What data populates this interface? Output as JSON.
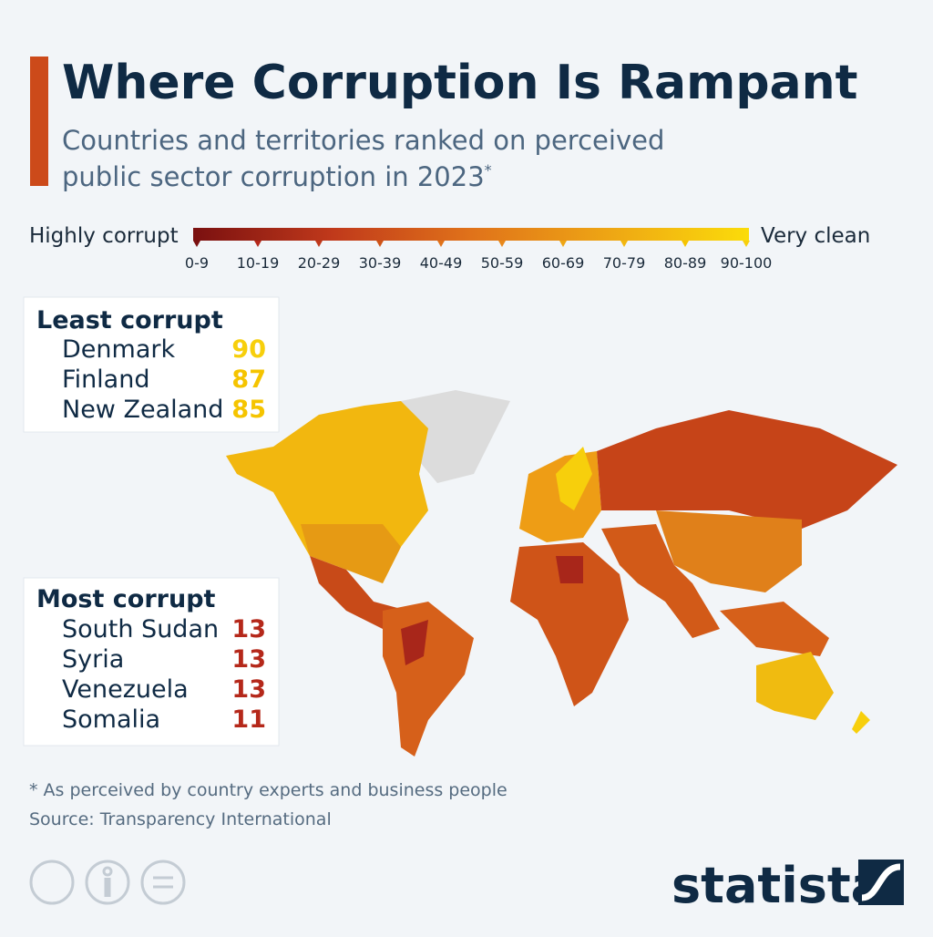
{
  "header": {
    "title": "Where Corruption Is Rampant",
    "subtitle_line1": "Countries and territories ranked on perceived",
    "subtitle_line2": "public sector corruption in 2023",
    "subtitle_mark": "*"
  },
  "legend": {
    "low_label": "Highly corrupt",
    "high_label": "Very clean",
    "bins": [
      "0-9",
      "10-19",
      "20-29",
      "30-39",
      "40-49",
      "50-59",
      "60-69",
      "70-79",
      "80-89",
      "90-100"
    ]
  },
  "least_corrupt": {
    "heading": "Least corrupt",
    "items": [
      {
        "country": "Denmark",
        "score": 90
      },
      {
        "country": "Finland",
        "score": 87
      },
      {
        "country": "New Zealand",
        "score": 85
      }
    ]
  },
  "most_corrupt": {
    "heading": "Most corrupt",
    "items": [
      {
        "country": "South Sudan",
        "score": 13
      },
      {
        "country": "Syria",
        "score": 13
      },
      {
        "country": "Venezuela",
        "score": 13
      },
      {
        "country": "Somalia",
        "score": 11
      }
    ]
  },
  "footer": {
    "note": "* As perceived by country experts and business people",
    "source": "Source: Transparency International",
    "brand": "statista"
  }
}
